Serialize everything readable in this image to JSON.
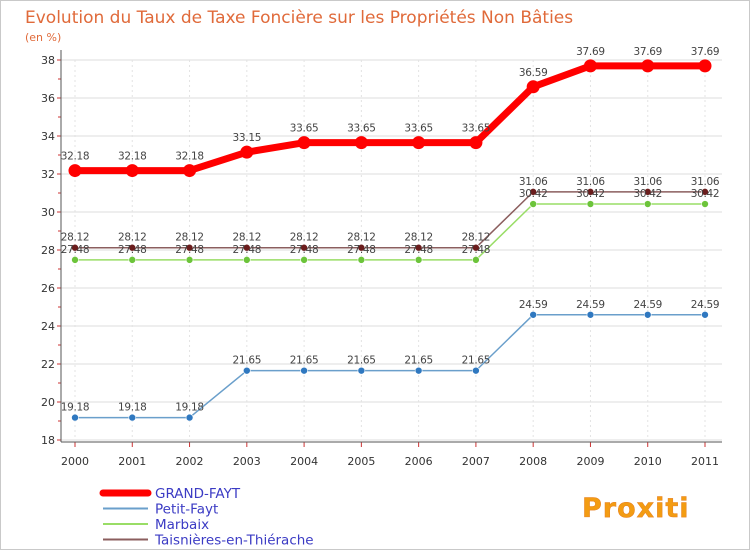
{
  "chart_data": {
    "type": "line",
    "title": "Evolution du Taux de Taxe Foncière sur les Propriétés Non Bâties",
    "subtitle": "(en %)",
    "xlabel": "",
    "ylabel": "",
    "x": [
      "2000",
      "2001",
      "2002",
      "2003",
      "2004",
      "2005",
      "2006",
      "2007",
      "2008",
      "2009",
      "2010",
      "2011"
    ],
    "ylim": [
      18,
      38
    ],
    "yticks": [
      "18",
      "20",
      "22",
      "24",
      "26",
      "28",
      "30",
      "32",
      "34",
      "36",
      "38"
    ],
    "grid": true,
    "legend": "bottom-left",
    "series": [
      {
        "name": "GRAND-FAYT",
        "color": "#ff0000",
        "point_color": "#ff0000",
        "values": [
          32.18,
          32.18,
          32.18,
          33.15,
          33.65,
          33.65,
          33.65,
          33.65,
          36.59,
          37.69,
          37.69,
          37.69
        ],
        "labels": [
          "32.18",
          "32.18",
          "32.18",
          "33.15",
          "33.65",
          "33.65",
          "33.65",
          "33.65",
          "36.59",
          "37.69",
          "37.69",
          "37.69"
        ]
      },
      {
        "name": "Petit-Fayt",
        "color": "#6a9fcb",
        "point_color": "#2f78c0",
        "values": [
          19.18,
          19.18,
          19.18,
          21.65,
          21.65,
          21.65,
          21.65,
          21.65,
          24.59,
          24.59,
          24.59,
          24.59
        ],
        "labels": [
          "19.18",
          "19.18",
          "19.18",
          "21.65",
          "21.65",
          "21.65",
          "21.65",
          "21.65",
          "24.59",
          "24.59",
          "24.59",
          "24.59"
        ]
      },
      {
        "name": "Marbaix",
        "color": "#99dd66",
        "point_color": "#6cc43a",
        "values": [
          27.48,
          27.48,
          27.48,
          27.48,
          27.48,
          27.48,
          27.48,
          27.48,
          30.42,
          30.42,
          30.42,
          30.42
        ],
        "labels": [
          "27.48",
          "27.48",
          "27.48",
          "27.48",
          "27.48",
          "27.48",
          "27.48",
          "27.48",
          "30.42",
          "30.42",
          "30.42",
          "30.42"
        ]
      },
      {
        "name": "Taisnières-en-Thiérache",
        "color": "#8b5e5e",
        "point_color": "#6b1d1d",
        "values": [
          28.12,
          28.12,
          28.12,
          28.12,
          28.12,
          28.12,
          28.12,
          28.12,
          31.06,
          31.06,
          31.06,
          31.06
        ],
        "labels": [
          "28.12",
          "28.12",
          "28.12",
          "28.12",
          "28.12",
          "28.12",
          "28.12",
          "28.12",
          "31.06",
          "31.06",
          "31.06",
          "31.06"
        ]
      }
    ]
  },
  "logo": {
    "text": "Proxiti"
  },
  "colors": {
    "title": "#e06a3a",
    "axis": "#333333",
    "grid": "#d9d9d9",
    "label": "#444444",
    "legend_text": "#3b3bc4"
  }
}
